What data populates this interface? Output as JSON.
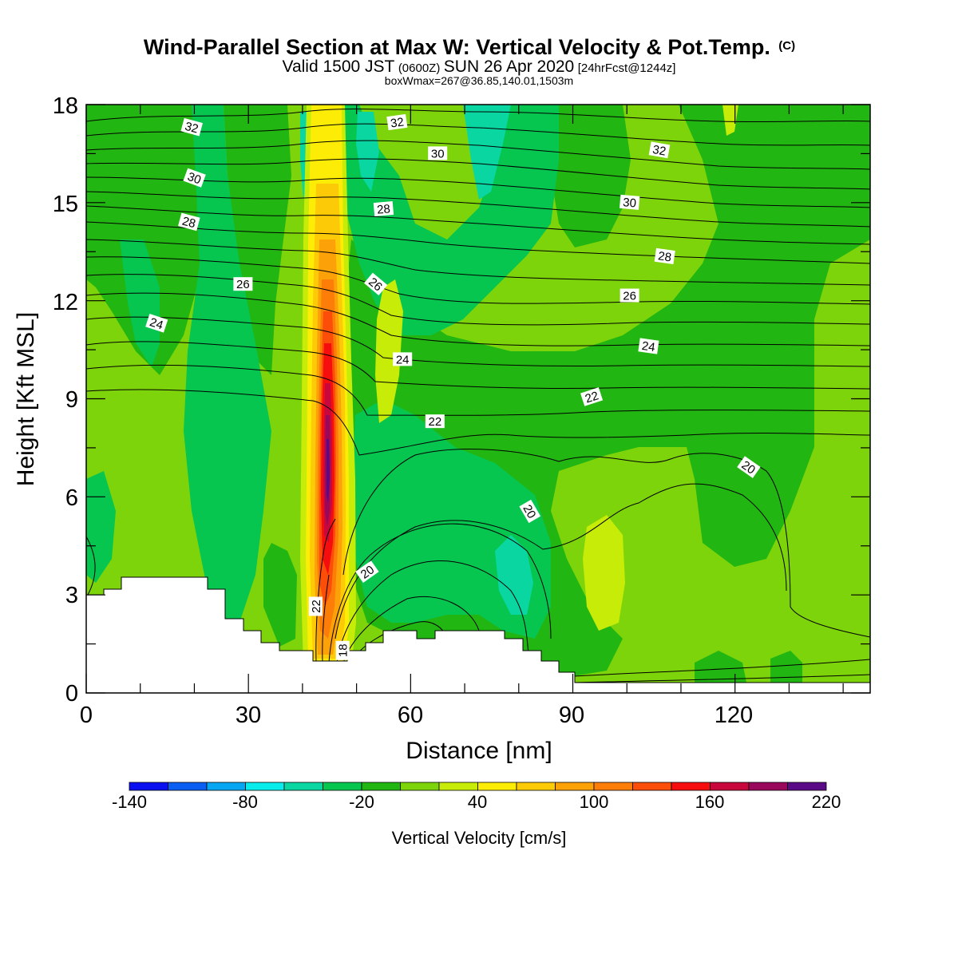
{
  "chart_data": {
    "type": "heatmap",
    "title": {
      "main": "Wind-Parallel Section at Max W: Vertical Velocity & Pot.Temp.",
      "copyright": "(C)",
      "valid_a": "Valid 1500 JST",
      "valid_utc": "(0600Z)",
      "valid_b": "SUN 26 Apr 2020",
      "forecast": "[24hrFcst@1244z]",
      "info": "boxWmax=267@36.85,140.01,1503m"
    },
    "xlabel": "Distance [nm]",
    "ylabel": "Height [Kft MSL]",
    "xlim": [
      0,
      145
    ],
    "ylim": [
      0,
      18
    ],
    "x_ticks": [
      "0",
      "30",
      "60",
      "90",
      "120"
    ],
    "y_ticks": [
      "0",
      "3",
      "6",
      "9",
      "12",
      "15",
      "18"
    ],
    "colorbar": {
      "title": "Vertical Velocity [cm/s]",
      "tick_labels": [
        "-140",
        "-80",
        "-20",
        "40",
        "100",
        "160",
        "220"
      ],
      "levels": [
        -140,
        -120,
        -100,
        -80,
        -60,
        -40,
        -20,
        0,
        20,
        40,
        60,
        80,
        100,
        120,
        140,
        160,
        180,
        200,
        220
      ],
      "colors": [
        "#0a10f0",
        "#0a5ef2",
        "#06a6f2",
        "#08ecec",
        "#0ad6a2",
        "#06c650",
        "#22b612",
        "#7ed40a",
        "#c6ec08",
        "#fcec06",
        "#fcca06",
        "#fca208",
        "#fc7e08",
        "#fc4e08",
        "#f60e0e",
        "#c8083c",
        "#9a085c",
        "#5a0a86"
      ]
    },
    "contour_labels": [
      {
        "text": "32",
        "x": 19.5,
        "y": 17.3,
        "angle": 15
      },
      {
        "text": "32",
        "x": 57.5,
        "y": 17.45,
        "angle": -8
      },
      {
        "text": "32",
        "x": 106,
        "y": 16.6,
        "angle": 10
      },
      {
        "text": "30",
        "x": 20,
        "y": 15.75,
        "angle": 20
      },
      {
        "text": "30",
        "x": 65,
        "y": 16.5,
        "angle": 0
      },
      {
        "text": "30",
        "x": 100.5,
        "y": 15.0,
        "angle": 5
      },
      {
        "text": "28",
        "x": 19,
        "y": 14.4,
        "angle": 15
      },
      {
        "text": "28",
        "x": 55,
        "y": 14.8,
        "angle": -5
      },
      {
        "text": "28",
        "x": 107,
        "y": 13.35,
        "angle": 8
      },
      {
        "text": "26",
        "x": 29,
        "y": 12.5,
        "angle": 0
      },
      {
        "text": "26",
        "x": 53.5,
        "y": 12.5,
        "angle": 40
      },
      {
        "text": "26",
        "x": 100.5,
        "y": 12.15,
        "angle": 0
      },
      {
        "text": "24",
        "x": 13,
        "y": 11.3,
        "angle": 18
      },
      {
        "text": "24",
        "x": 58.5,
        "y": 10.2,
        "angle": 0
      },
      {
        "text": "24",
        "x": 104,
        "y": 10.6,
        "angle": 8
      },
      {
        "text": "22",
        "x": 64.5,
        "y": 8.3,
        "angle": 0
      },
      {
        "text": "22",
        "x": 93.5,
        "y": 9.05,
        "angle": -18
      },
      {
        "text": "20",
        "x": 122.5,
        "y": 6.9,
        "angle": 35
      },
      {
        "text": "20",
        "x": 82,
        "y": 5.55,
        "angle": 60
      },
      {
        "text": "20",
        "x": 52,
        "y": 3.7,
        "angle": -35
      },
      {
        "text": "22",
        "x": 42.5,
        "y": 2.65,
        "angle": -90
      },
      {
        "text": "18",
        "x": 47.5,
        "y": 1.3,
        "angle": -90
      }
    ]
  }
}
